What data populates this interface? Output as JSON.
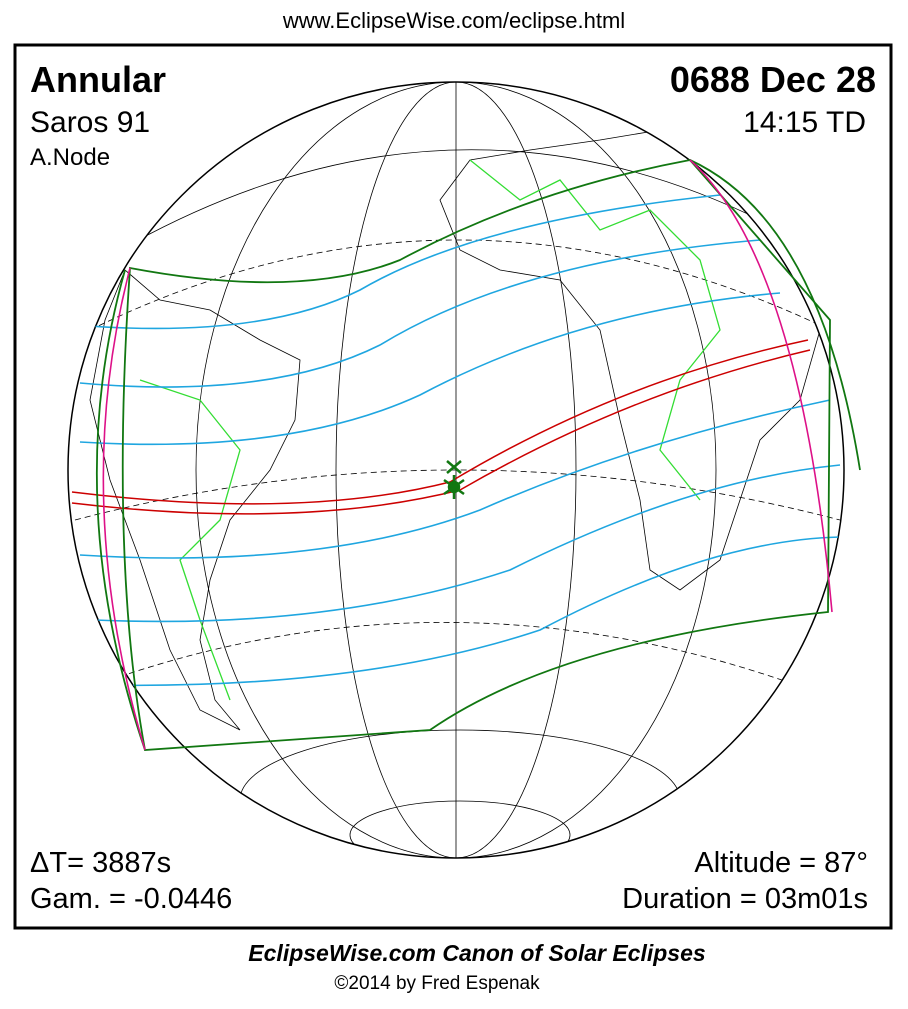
{
  "header": {
    "url": "www.EclipseWise.com/eclipse.html"
  },
  "panel": {
    "eclipse_type": "Annular",
    "saros": "Saros  91",
    "node": "A.Node",
    "date": "0688 Dec 28",
    "time": "14:15 TD",
    "delta_t": "ΔT=   3887s",
    "gamma": "Gam. = -0.0446",
    "altitude": "Altitude = 87°",
    "duration": "Duration = 03m01s"
  },
  "footer": {
    "title": "EclipseWise.com Canon of Solar Eclipses",
    "credit": "©2014 by Fred Espenak"
  }
}
